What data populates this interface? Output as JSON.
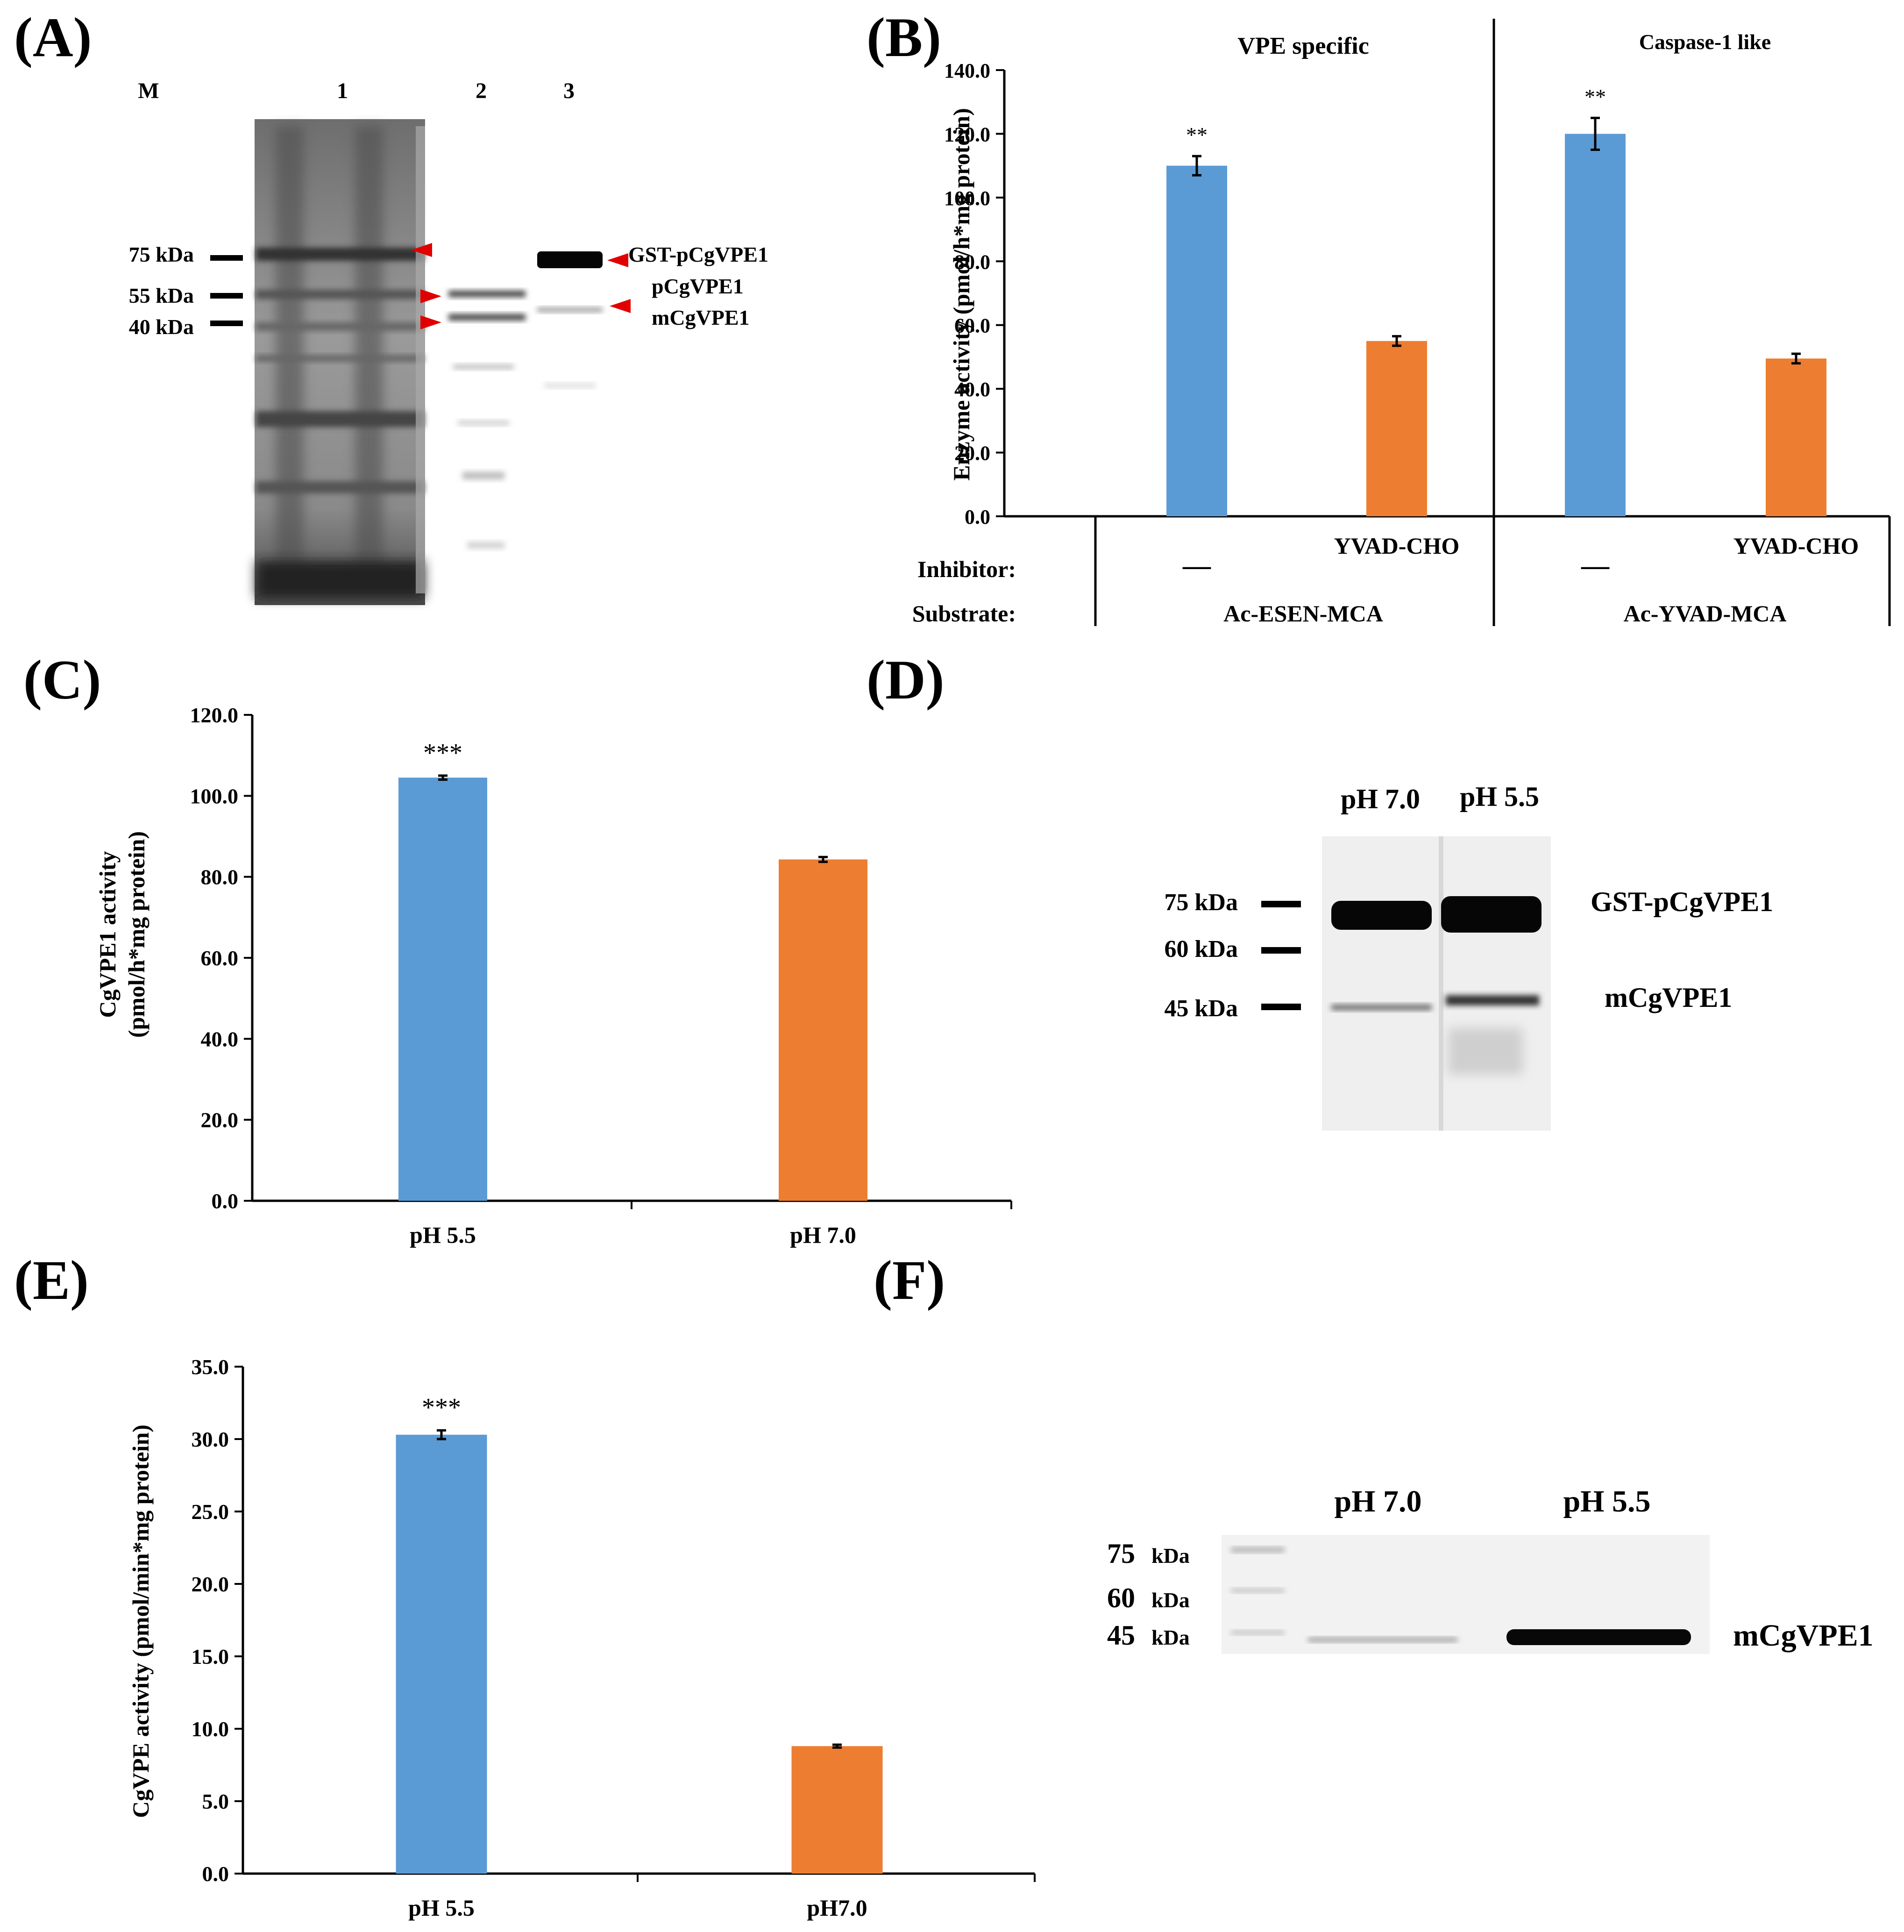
{
  "panel_labels": {
    "A": "(A)",
    "B": "(B)",
    "C": "(C)",
    "D": "(D)",
    "E": "(E)",
    "F": "(F)"
  },
  "colors": {
    "blue": "#5b9bd5",
    "orange": "#ed7d31",
    "axis": "#000000",
    "arrow": "#e00000"
  },
  "blot_a": {
    "lanes": [
      "M",
      "1",
      "2",
      "3"
    ],
    "markers": [
      "75 kDa",
      "55 kDa",
      "40 kDa"
    ],
    "bands": [
      "GST-pCgVPE1",
      "pCgVPE1",
      "mCgVPE1"
    ]
  },
  "blot_d": {
    "lanes": [
      "pH 7.0",
      "pH 5.5"
    ],
    "markers": [
      "75 kDa",
      "60 kDa",
      "45 kDa"
    ],
    "bands": [
      "GST-pCgVPE1",
      "mCgVPE1"
    ]
  },
  "blot_f": {
    "lanes": [
      "pH 7.0",
      "pH 5.5"
    ],
    "marker_numbers": [
      "75",
      "60",
      "45"
    ],
    "marker_unit": "kDa",
    "bands": [
      "mCgVPE1"
    ]
  },
  "chart_data": [
    {
      "panel": "B",
      "type": "bar",
      "ylabel": "Enzyme activity (pmol/h*mg protein)",
      "ylim": [
        0,
        140
      ],
      "yticks": [
        "0.0",
        "20.0",
        "40.0",
        "60.0",
        "80.0",
        "100.0",
        "120.0",
        "140.0"
      ],
      "groups": [
        {
          "title": "VPE specific",
          "substrate": "Ac-ESEN-MCA",
          "bars": [
            {
              "inhibitor": "—",
              "value": 110,
              "error": 3,
              "sig": "**",
              "color": "blue"
            },
            {
              "inhibitor": "YVAD-CHO",
              "value": 55,
              "error": 1.5,
              "sig": "",
              "color": "orange"
            }
          ]
        },
        {
          "title": "Caspase-1 like",
          "substrate": "Ac-YVAD-MCA",
          "bars": [
            {
              "inhibitor": "—",
              "value": 120,
              "error": 5,
              "sig": "**",
              "color": "blue"
            },
            {
              "inhibitor": "YVAD-CHO",
              "value": 49.5,
              "error": 1.5,
              "sig": "",
              "color": "orange"
            }
          ]
        }
      ],
      "row_labels": {
        "inhibitor": "Inhibitor:",
        "substrate": "Substrate:"
      }
    },
    {
      "panel": "C",
      "type": "bar",
      "ylabel_lines": [
        "CgVPE1 activity",
        "(pmol/h*mg protein)"
      ],
      "ylim": [
        0,
        120
      ],
      "yticks": [
        "0.0",
        "20.0",
        "40.0",
        "60.0",
        "80.0",
        "100.0",
        "120.0"
      ],
      "categories": [
        "pH 5.5",
        "pH 7.0"
      ],
      "values": [
        104.5,
        84.3
      ],
      "errors": [
        0.5,
        0.6
      ],
      "sig": [
        "***",
        ""
      ],
      "colors": [
        "blue",
        "orange"
      ]
    },
    {
      "panel": "E",
      "type": "bar",
      "ylabel": "CgVPE activity (pmol/min*mg protein)",
      "ylim": [
        0,
        35
      ],
      "yticks": [
        "0.0",
        "5.0",
        "10.0",
        "15.0",
        "20.0",
        "25.0",
        "30.0",
        "35.0"
      ],
      "categories": [
        "pH 5.5",
        "pH7.0"
      ],
      "values": [
        30.3,
        8.8
      ],
      "errors": [
        0.3,
        0.1
      ],
      "sig": [
        "***",
        ""
      ],
      "colors": [
        "blue",
        "orange"
      ]
    }
  ]
}
